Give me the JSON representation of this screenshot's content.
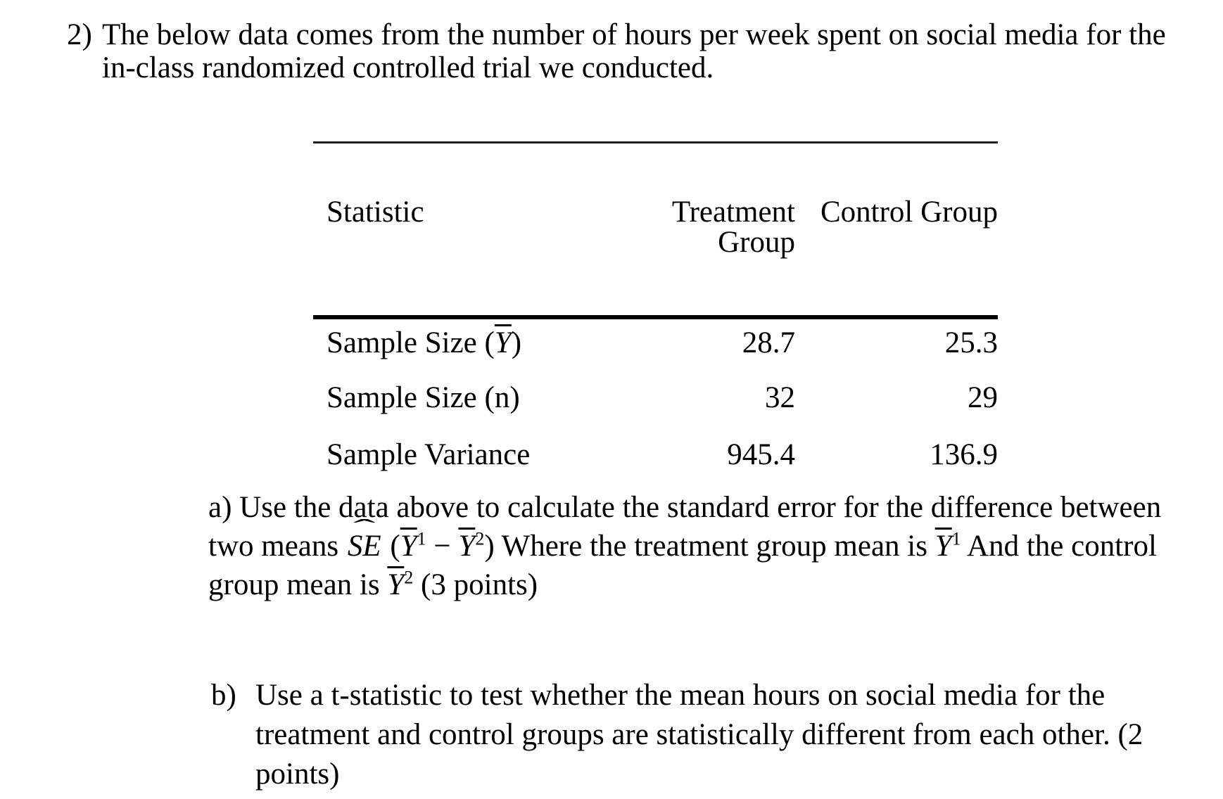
{
  "page": {
    "background_color": "#ffffff",
    "text_color": "#000000"
  },
  "question": {
    "number": "2)",
    "intro_line1": "The below data comes from the number of hours per week spent on social media for the",
    "intro_line2": "in-class randomized controlled trial we conducted."
  },
  "table": {
    "col_statistic": "Statistic",
    "col_treatment": "Treatment Group",
    "col_control": "Control Group",
    "rows": [
      {
        "label_prefix": "Sample Size (",
        "label_math": "Y",
        "label_suffix": ")",
        "treatment": "28.7",
        "control": "25.3"
      },
      {
        "label": "Sample Size (n)",
        "treatment": "32",
        "control": "29"
      },
      {
        "label": "Sample Variance",
        "treatment": "945.4",
        "control": "136.9"
      }
    ]
  },
  "part_a": {
    "line1": "a) Use the data above to calculate the standard error for the difference between",
    "line2_pre": "two means ",
    "se_text": "SE",
    "hat_char": "ˆ",
    "open_paren": " (",
    "y_symbol": "Y",
    "sup_1": "1",
    "minus": " − ",
    "sup_2": "2",
    "close_text": ") Where the treatment group mean is ",
    "line2_post": " And the control",
    "line3_pre": "group mean is ",
    "line3_post": " (3 points)"
  },
  "part_b": {
    "label": "b)",
    "line1": "Use a t-statistic to test whether the mean hours on social media for the",
    "line2": "treatment and control groups are statistically different from each other. (2",
    "line3": "points)"
  }
}
